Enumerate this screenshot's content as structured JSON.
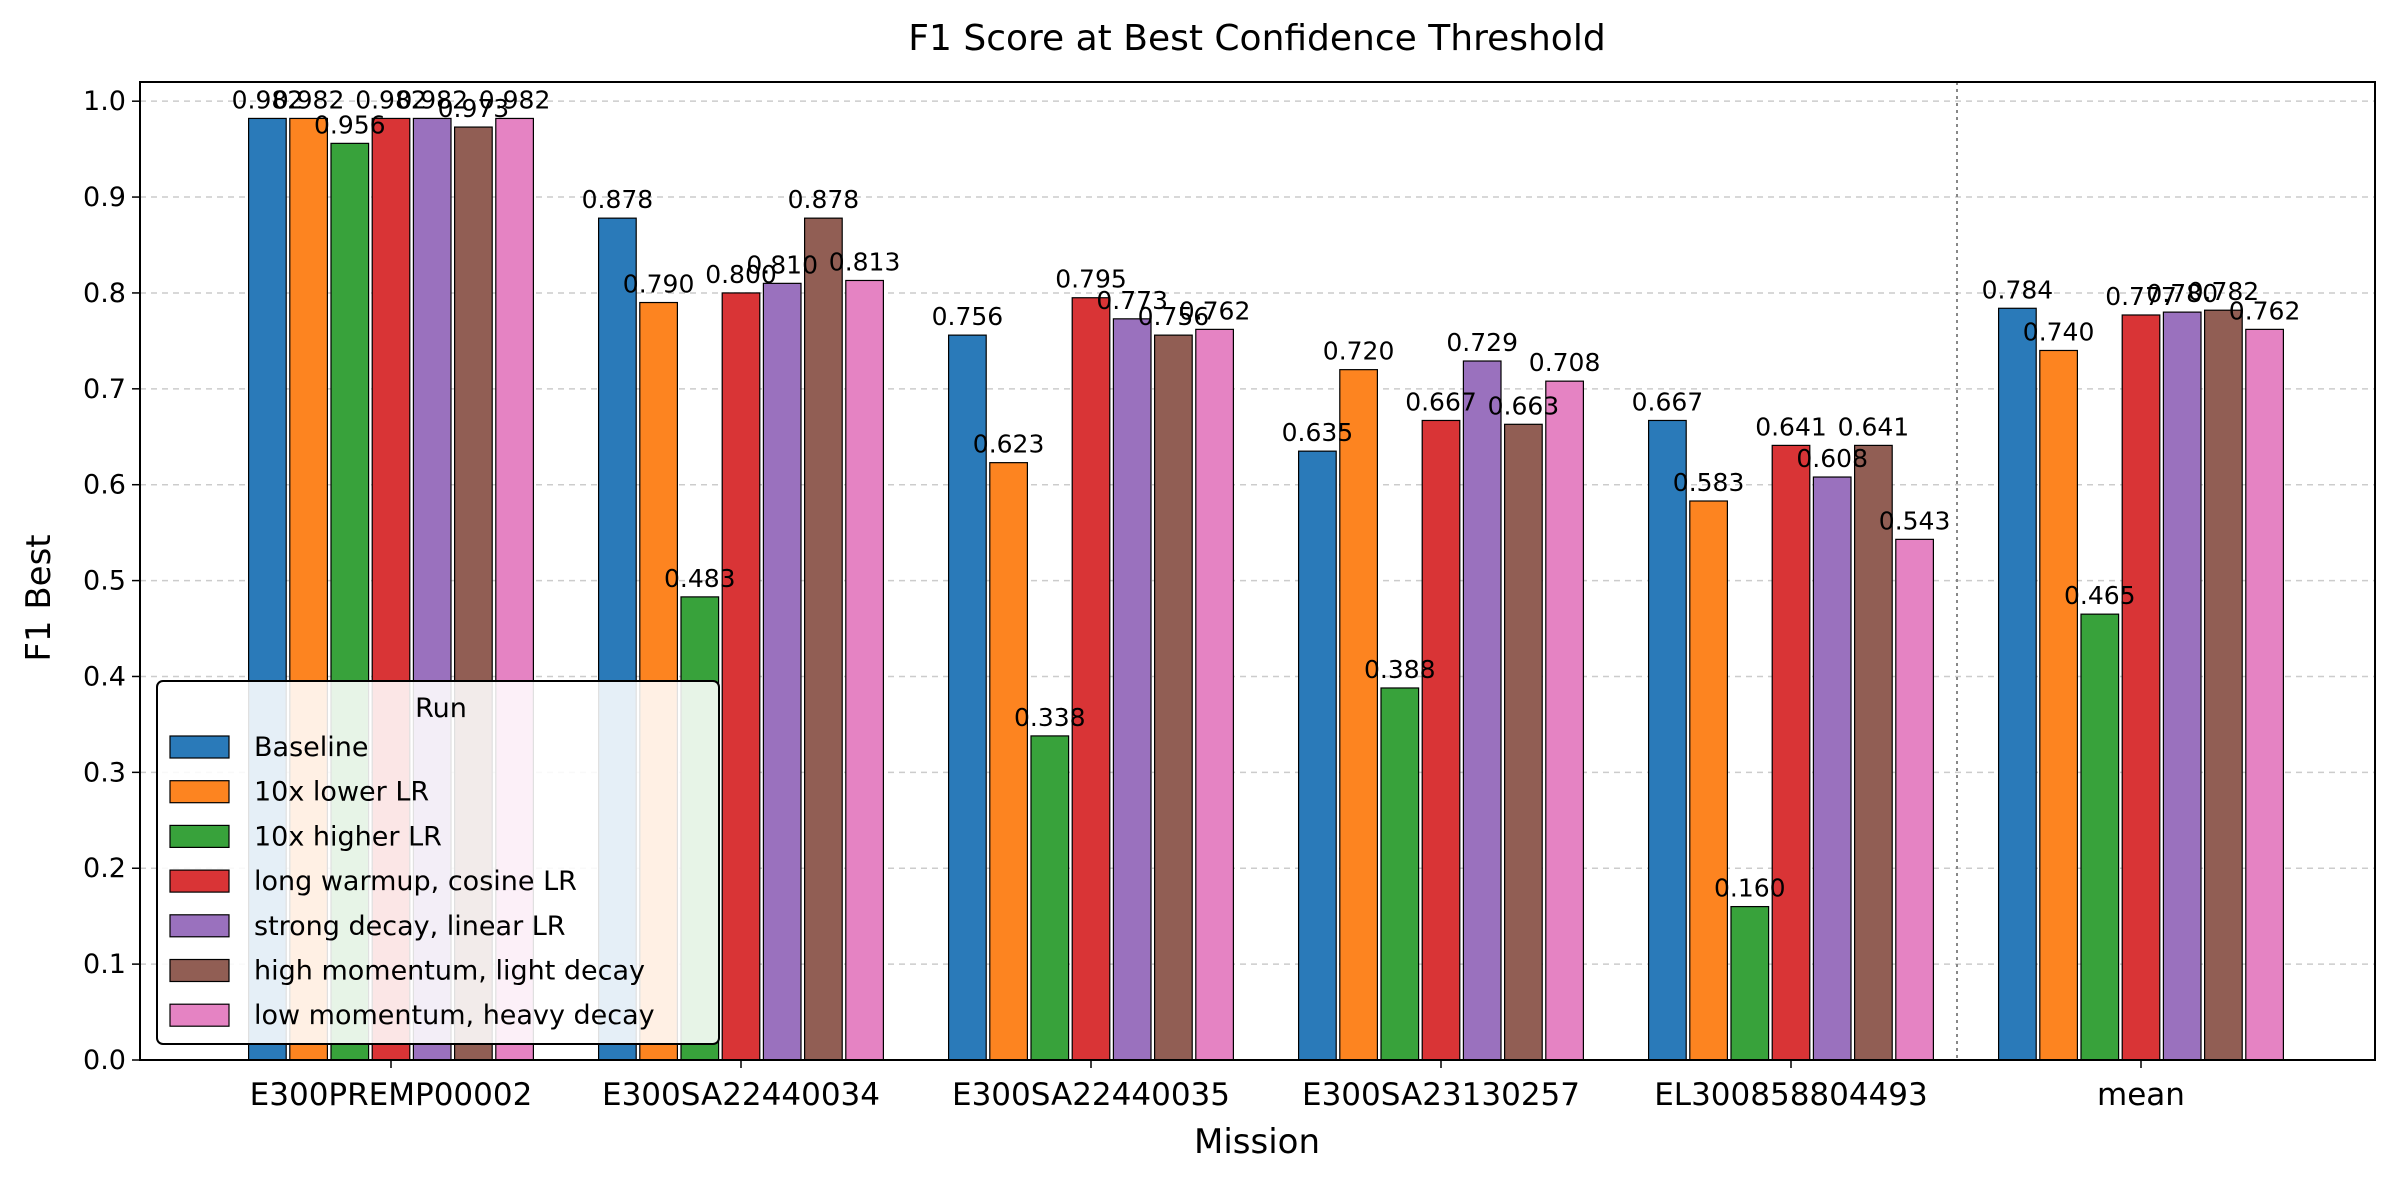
{
  "chart_data": {
    "type": "bar",
    "title": "F1 Score at Best Confidence Threshold",
    "xlabel": "Mission",
    "ylabel": "F1 Best",
    "ylim": [
      0,
      1.02
    ],
    "yticks": [
      0.0,
      0.1,
      0.2,
      0.3,
      0.4,
      0.5,
      0.6,
      0.7,
      0.8,
      0.9,
      1.0
    ],
    "ytick_labels": [
      "0.0",
      "0.1",
      "0.2",
      "0.3",
      "0.4",
      "0.5",
      "0.6",
      "0.7",
      "0.8",
      "0.9",
      "1.0"
    ],
    "grid": "y, dashed",
    "separator_before": "mean",
    "categories": [
      "E300PREMP00002",
      "E300SA22440034",
      "E300SA22440035",
      "E300SA23130257",
      "EL300858804493",
      "mean"
    ],
    "legend": {
      "title": "Run",
      "placement": "lower-left"
    },
    "series": [
      {
        "name": "Baseline",
        "color": "#2a7ab9",
        "values": [
          0.982,
          0.878,
          0.756,
          0.635,
          0.667,
          0.784
        ],
        "labels": [
          "0.982",
          "0.878",
          "0.756",
          "0.635",
          "0.667",
          "0.784"
        ]
      },
      {
        "name": "10x lower LR",
        "color": "#fd8420",
        "values": [
          0.982,
          0.79,
          0.623,
          0.72,
          0.583,
          0.74
        ],
        "labels": [
          "0.982",
          "0.790",
          "0.623",
          "0.720",
          "0.583",
          "0.740"
        ]
      },
      {
        "name": "10x higher LR",
        "color": "#38a23b",
        "values": [
          0.956,
          0.483,
          0.338,
          0.388,
          0.16,
          0.465
        ],
        "labels": [
          "0.956",
          "0.483",
          "0.338",
          "0.388",
          "0.160",
          "0.465"
        ]
      },
      {
        "name": "long warmup, cosine LR",
        "color": "#d93436",
        "values": [
          0.982,
          0.8,
          0.795,
          0.667,
          0.641,
          0.777
        ],
        "labels": [
          "0.982",
          "0.800",
          "0.795",
          "0.667",
          "0.641",
          "0.777"
        ]
      },
      {
        "name": "strong decay, linear LR",
        "color": "#9a71be",
        "values": [
          0.982,
          0.81,
          0.773,
          0.729,
          0.608,
          0.78
        ],
        "labels": [
          "0.982",
          "0.810",
          "0.773",
          "0.729",
          "0.608",
          "0.780"
        ]
      },
      {
        "name": "high momentum, light decay",
        "color": "#915e54",
        "values": [
          0.973,
          0.878,
          0.756,
          0.663,
          0.641,
          0.782
        ],
        "labels": [
          "0.973",
          "0.878",
          "0.756",
          "0.663",
          "0.641",
          "0.782"
        ]
      },
      {
        "name": "low momentum, heavy decay",
        "color": "#e583c3",
        "values": [
          0.982,
          0.813,
          0.762,
          0.708,
          0.543,
          0.762
        ],
        "labels": [
          "0.982",
          "0.813",
          "0.762",
          "0.708",
          "0.543",
          "0.762"
        ]
      }
    ]
  }
}
